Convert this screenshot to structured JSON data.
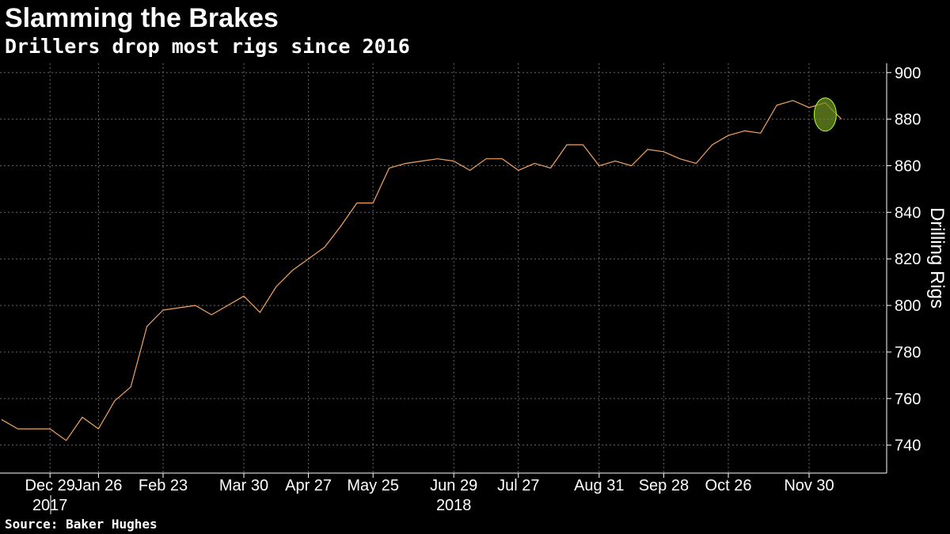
{
  "header": {
    "title": "Slamming the Brakes",
    "subtitle": "Drillers drop most rigs since 2016"
  },
  "footer": {
    "source": "Source: Baker Hughes"
  },
  "colors": {
    "background": "#000000",
    "line": "#f4a460",
    "grid": "#666666",
    "highlight_fill": "#6b8e23",
    "highlight_stroke": "#adff2f"
  },
  "chart_data": {
    "type": "line",
    "title": "Slamming the Brakes",
    "subtitle": "Drillers drop most rigs since 2016",
    "xlabel": "",
    "ylabel": "Drilling Rigs",
    "y_axis_position": "right",
    "ylim": [
      728,
      904
    ],
    "yticks": [
      740,
      760,
      780,
      800,
      820,
      840,
      860,
      880,
      900
    ],
    "grid": true,
    "x_tick_labels": [
      "Dec 29",
      "Jan 26",
      "Feb 23",
      "Mar 30",
      "Apr 27",
      "May 25",
      "Jun 29",
      "Jul 27",
      "Aug 31",
      "Sep 28",
      "Oct 26",
      "Nov 30"
    ],
    "x_tick_years": [
      "2017",
      "",
      "",
      "",
      "",
      "",
      "2018",
      "",
      "",
      "",
      "",
      ""
    ],
    "x_tick_week_index": [
      3,
      6,
      10,
      15,
      19,
      23,
      28,
      32,
      37,
      41,
      45,
      50
    ],
    "series": [
      {
        "values": [
          751,
          747,
          747,
          747,
          742,
          752,
          747,
          759,
          765,
          791,
          798,
          799,
          800,
          796,
          800,
          804,
          797,
          808,
          815,
          820,
          825,
          834,
          844,
          844,
          859,
          861,
          862,
          863,
          862,
          858,
          863,
          863,
          858,
          861,
          859,
          869,
          869,
          860,
          862,
          860,
          867,
          866,
          863,
          861,
          869,
          873,
          875,
          874,
          886,
          888,
          885,
          887,
          880
        ]
      }
    ],
    "highlight": {
      "shape": "ellipse",
      "week_index": 51,
      "value": 882
    }
  }
}
